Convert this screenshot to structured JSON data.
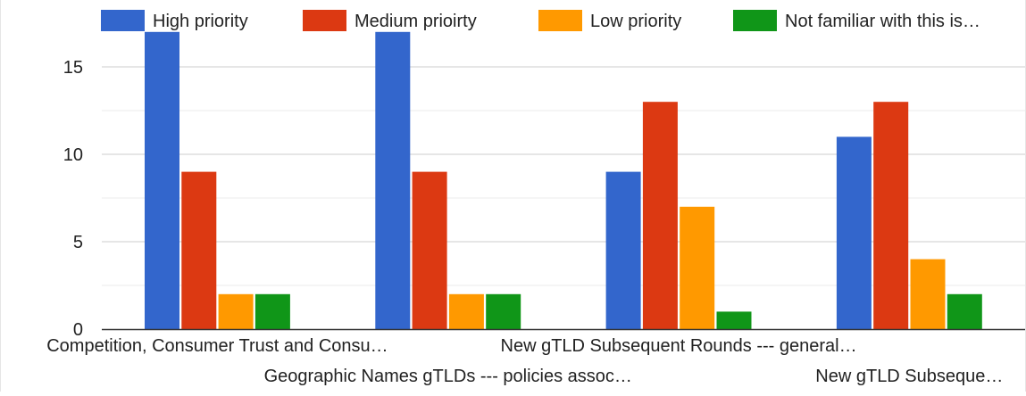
{
  "chart_data": {
    "type": "bar",
    "categories": [
      "Competition, Consumer Trust and Consu…",
      "Geographic Names gTLDs --- policies assoc…",
      "New gTLD Subsequent Rounds --- general…",
      "New gTLD Subseque…"
    ],
    "series": [
      {
        "name": "High priority",
        "color": "#3366cc",
        "values": [
          17,
          17,
          9,
          11
        ]
      },
      {
        "name": "Medium prioirty",
        "color": "#dc3912",
        "values": [
          9,
          9,
          13,
          13
        ]
      },
      {
        "name": "Low priority",
        "color": "#ff9900",
        "values": [
          2,
          2,
          7,
          4
        ]
      },
      {
        "name": "Not familiar with this is…",
        "color": "#109618",
        "values": [
          2,
          2,
          1,
          2
        ]
      }
    ],
    "yticks": [
      "0",
      "5",
      "10",
      "15"
    ],
    "ylim": [
      0,
      17
    ],
    "xlabel": "",
    "ylabel": "",
    "legend_position": "top",
    "grid": true
  }
}
